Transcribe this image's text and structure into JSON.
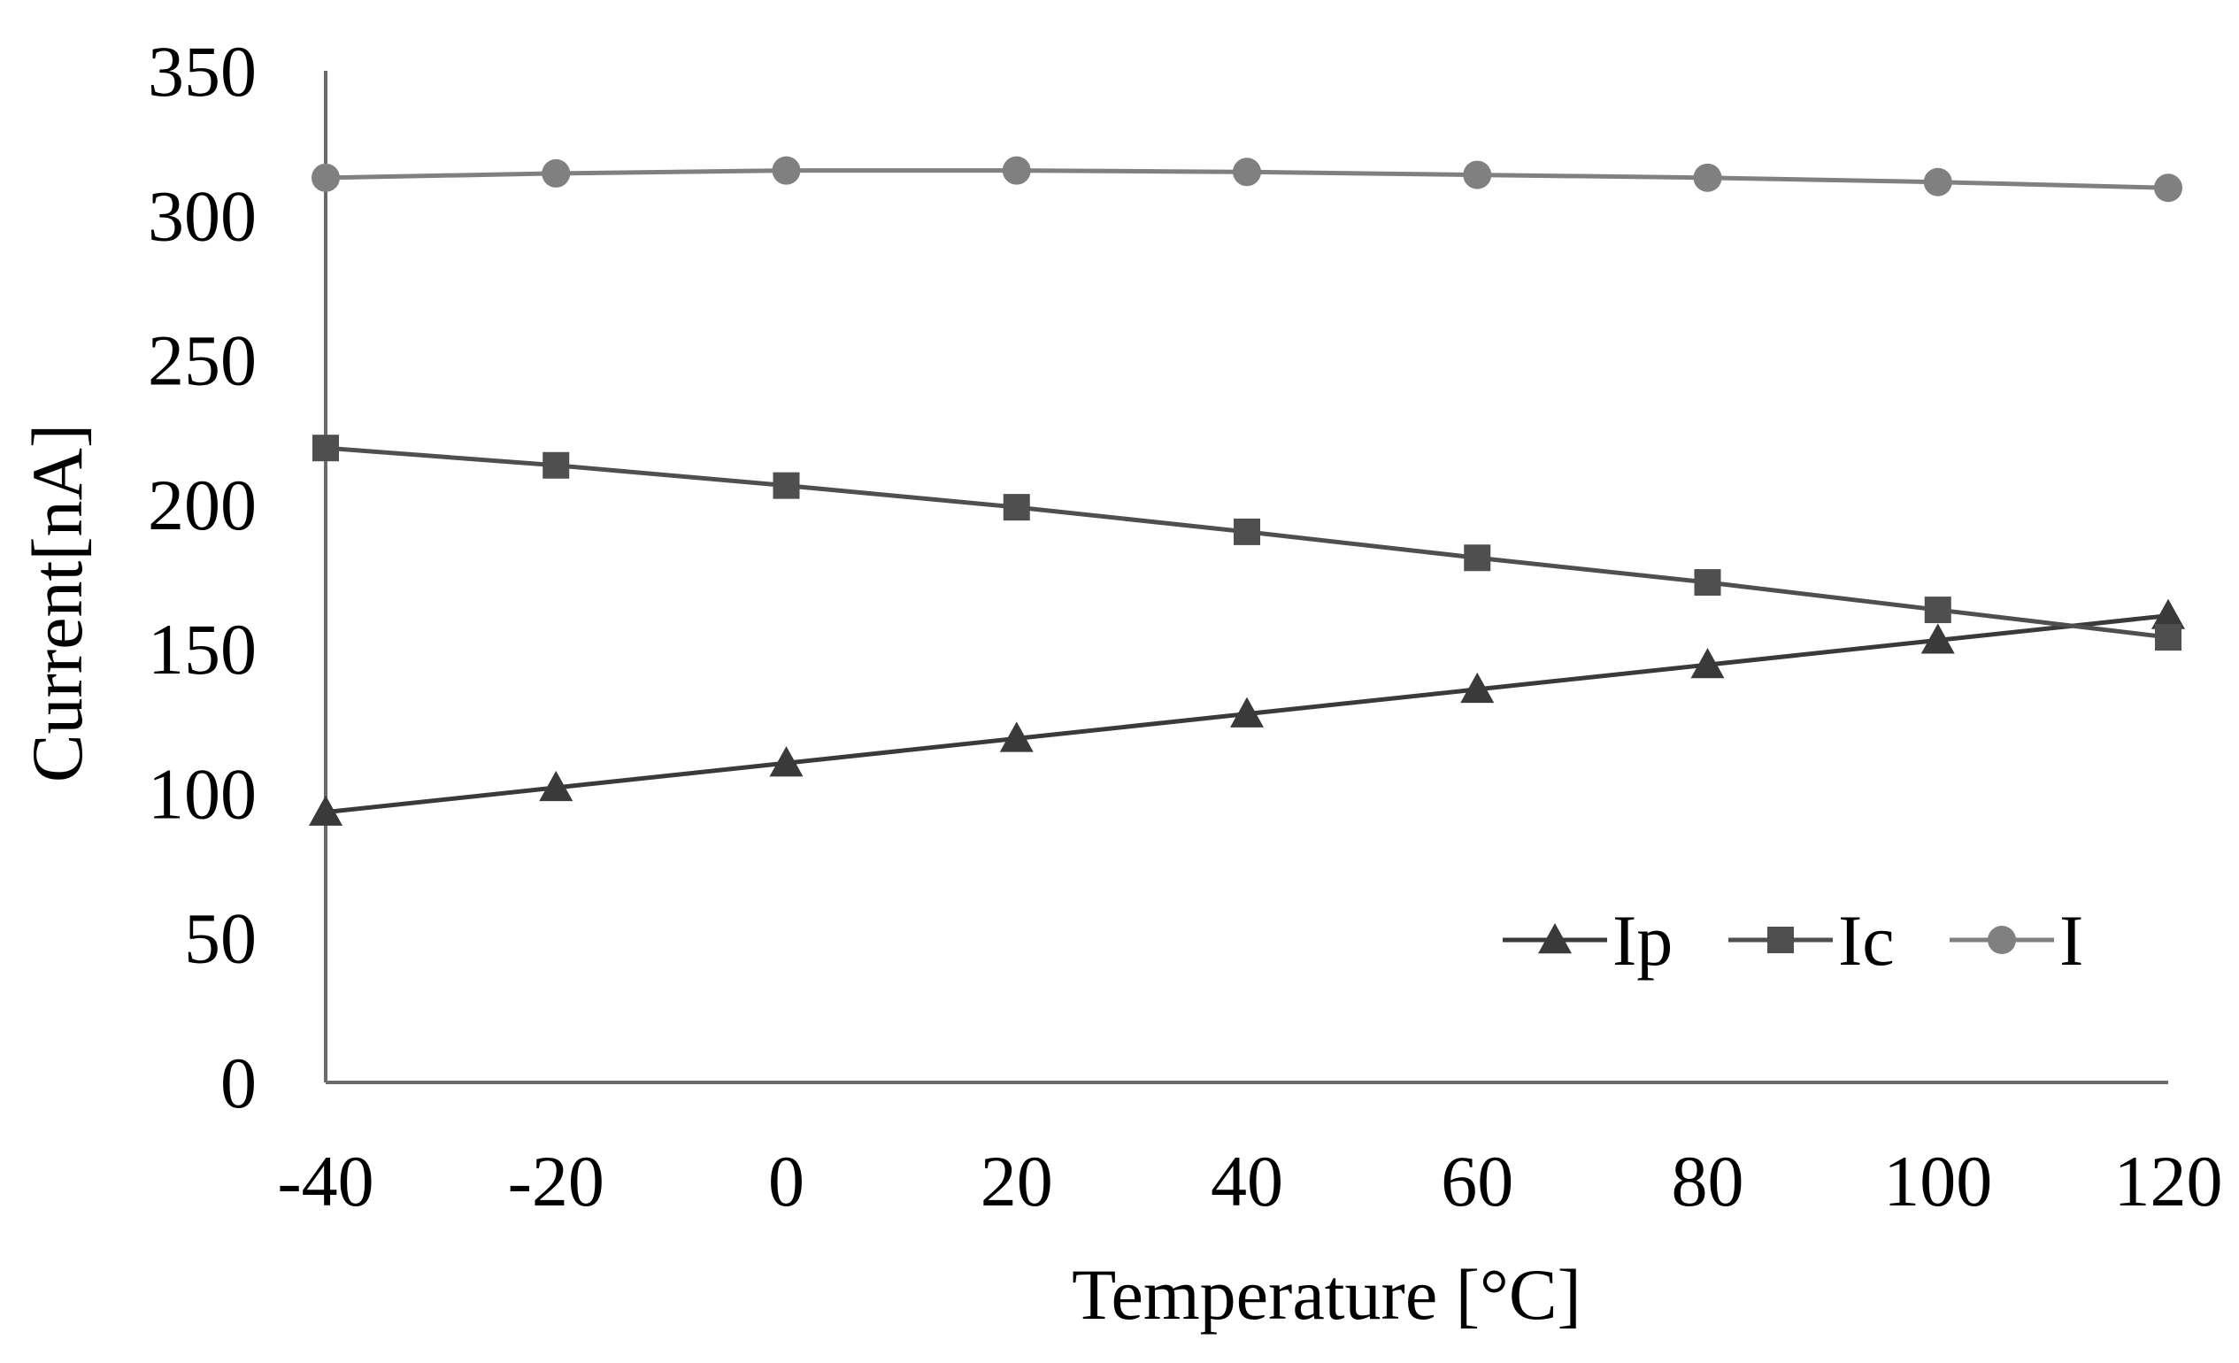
{
  "chart_data": {
    "type": "line",
    "title": "",
    "xlabel": "Temperature [°C]",
    "ylabel": "Current[nA]",
    "x": [
      -40,
      -20,
      0,
      20,
      40,
      60,
      80,
      100,
      120
    ],
    "xlim": [
      -40,
      120
    ],
    "ylim": [
      0,
      350
    ],
    "xticks": [
      "-40",
      "-20",
      "0",
      "20",
      "40",
      "60",
      "80",
      "100",
      "120"
    ],
    "yticks": [
      "0",
      "50",
      "100",
      "150",
      "200",
      "250",
      "300",
      "350"
    ],
    "grid": false,
    "legend_position": "bottom-right",
    "series": [
      {
        "name": "Ip",
        "marker": "triangle",
        "color": "#3a3a3a",
        "values": [
          93.5,
          102,
          110.5,
          119,
          127.5,
          136,
          144.5,
          153,
          161.5
        ]
      },
      {
        "name": "Ic",
        "marker": "square",
        "color": "#4f4f4f",
        "values": [
          219.5,
          213.5,
          206.5,
          199,
          190.5,
          181.5,
          173,
          163.5,
          154
        ]
      },
      {
        "name": "I",
        "marker": "circle",
        "color": "#808080",
        "values": [
          313,
          314.5,
          315.5,
          315.5,
          315,
          314,
          313,
          311.5,
          309.5
        ]
      }
    ]
  }
}
